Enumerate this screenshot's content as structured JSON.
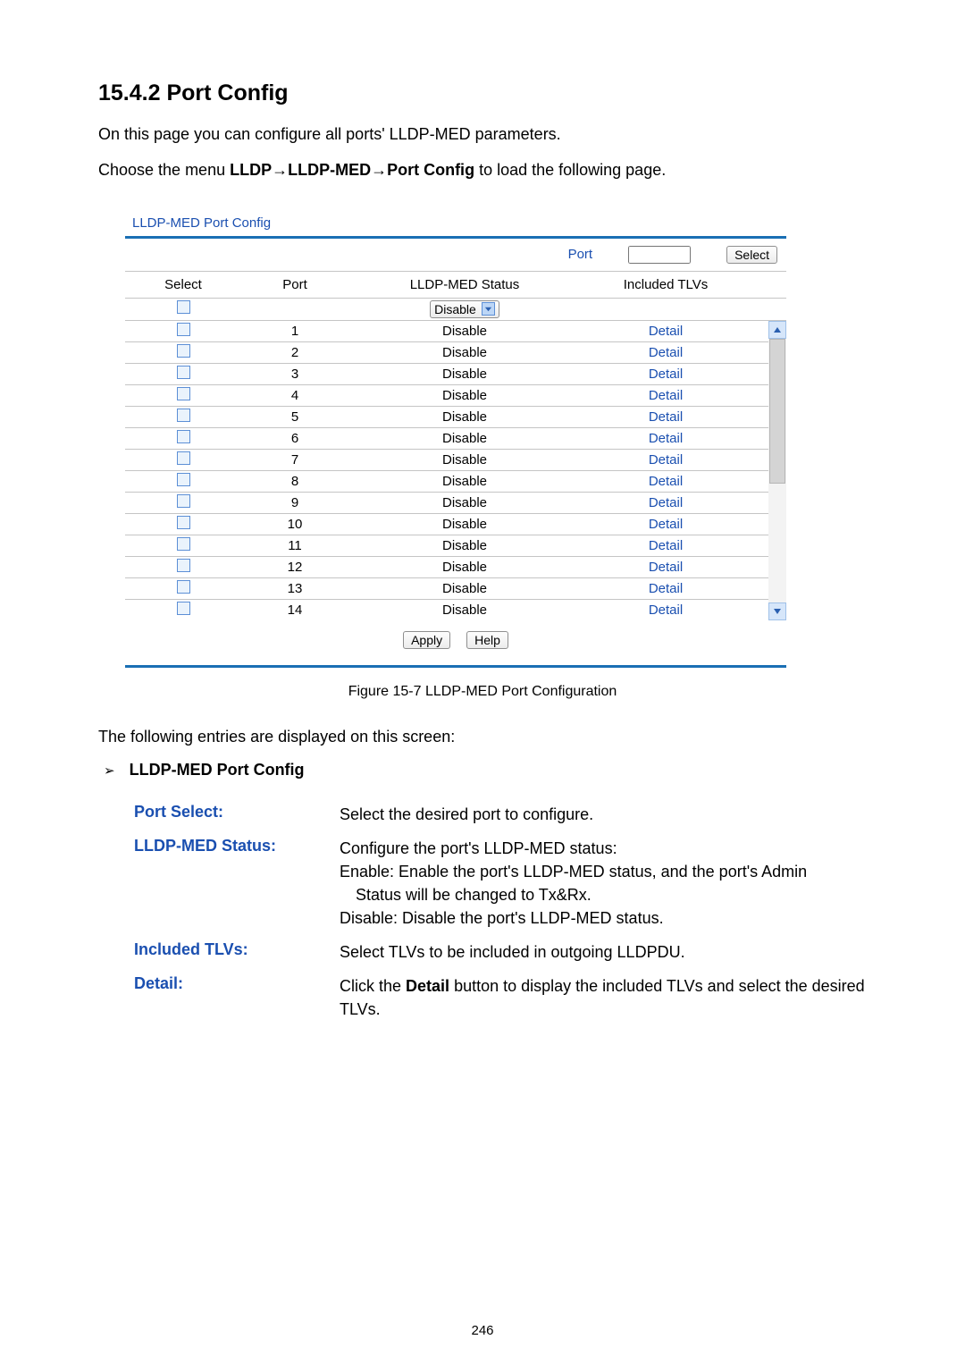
{
  "section_heading": "15.4.2  Port Config",
  "intro_line": "On this page you can configure all ports' LLDP-MED parameters.",
  "menu_prefix": "Choose the menu ",
  "menu_bold": "LLDP→LLDP-MED→Port Config",
  "menu_suffix": " to load the following page.",
  "panel": {
    "title": "LLDP-MED Port Config",
    "port_label": "Port",
    "select_button": "Select",
    "columns": {
      "select": "Select",
      "port": "Port",
      "status": "LLDP-MED Status",
      "tlvs": "Included TLVs"
    },
    "status_select_value": "Disable",
    "rows": [
      {
        "port": "1",
        "status": "Disable",
        "detail": "Detail"
      },
      {
        "port": "2",
        "status": "Disable",
        "detail": "Detail"
      },
      {
        "port": "3",
        "status": "Disable",
        "detail": "Detail"
      },
      {
        "port": "4",
        "status": "Disable",
        "detail": "Detail"
      },
      {
        "port": "5",
        "status": "Disable",
        "detail": "Detail"
      },
      {
        "port": "6",
        "status": "Disable",
        "detail": "Detail"
      },
      {
        "port": "7",
        "status": "Disable",
        "detail": "Detail"
      },
      {
        "port": "8",
        "status": "Disable",
        "detail": "Detail"
      },
      {
        "port": "9",
        "status": "Disable",
        "detail": "Detail"
      },
      {
        "port": "10",
        "status": "Disable",
        "detail": "Detail"
      },
      {
        "port": "11",
        "status": "Disable",
        "detail": "Detail"
      },
      {
        "port": "12",
        "status": "Disable",
        "detail": "Detail"
      },
      {
        "port": "13",
        "status": "Disable",
        "detail": "Detail"
      },
      {
        "port": "14",
        "status": "Disable",
        "detail": "Detail"
      }
    ],
    "apply_label": "Apply",
    "help_label": "Help"
  },
  "figure_caption": "Figure 15-7 LLDP-MED Port Configuration",
  "entries_intro": "The following entries are displayed on this screen:",
  "bullet_title": "LLDP-MED Port Config",
  "defs": {
    "port_select": {
      "term": "Port Select:",
      "desc1": "Select the desired port to configure."
    },
    "status": {
      "term": "LLDP-MED Status:",
      "line1": "Configure the port's LLDP-MED status:",
      "line2a": "Enable: Enable the port's LLDP-MED status, and the port's Admin",
      "line2b": "Status will be changed to Tx&Rx.",
      "line3": "Disable: Disable the port's LLDP-MED status."
    },
    "tlvs": {
      "term": "Included TLVs:",
      "desc1": "Select TLVs to be included in outgoing LLDPDU."
    },
    "detail": {
      "term": "Detail:",
      "pre": "Click the ",
      "bold": "Detail",
      "post": " button to display the included TLVs and select the desired TLVs."
    }
  },
  "page_number": "246",
  "colors": {
    "heading_blue": "#1a4fb0",
    "rule_blue": "#1a6fb4",
    "link_blue": "#1a4fb0"
  }
}
